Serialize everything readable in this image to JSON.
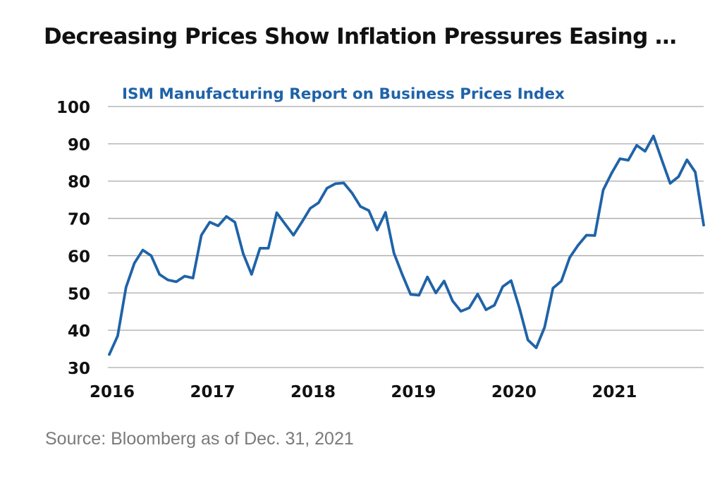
{
  "header": {
    "title": "Decreasing Prices Show Inflation Pressures Easing …"
  },
  "footer": {
    "source": "Source: Bloomberg as of Dec. 31, 2021"
  },
  "chart_data": {
    "type": "line",
    "title": "ISM Manufacturing Report on Business Prices Index",
    "xlabel": "",
    "ylabel": "",
    "ylim": [
      30,
      100
    ],
    "yticks": [
      30,
      40,
      50,
      60,
      70,
      80,
      90,
      100
    ],
    "xlim": [
      "2016-01",
      "2021-12"
    ],
    "xticks": [
      {
        "label": "2016",
        "date": "2016-01"
      },
      {
        "label": "2017",
        "date": "2017-01"
      },
      {
        "label": "2018",
        "date": "2018-01"
      },
      {
        "label": "2019",
        "date": "2019-01"
      },
      {
        "label": "2020",
        "date": "2020-01"
      },
      {
        "label": "2021",
        "date": "2021-01"
      }
    ],
    "grid": true,
    "legend": "none",
    "line_color": "#1f63a8",
    "grid_color": "#a9a9a9",
    "series": [
      {
        "x": [
          "2016-01",
          "2016-02",
          "2016-03",
          "2016-04",
          "2016-05",
          "2016-06",
          "2016-07",
          "2016-08",
          "2016-09",
          "2016-10",
          "2016-11",
          "2016-12",
          "2017-01",
          "2017-02",
          "2017-03",
          "2017-04",
          "2017-05",
          "2017-06",
          "2017-07",
          "2017-08",
          "2017-09",
          "2017-10",
          "2017-11",
          "2017-12",
          "2018-01",
          "2018-02",
          "2018-03",
          "2018-04",
          "2018-05",
          "2018-06",
          "2018-07",
          "2018-08",
          "2018-09",
          "2018-10",
          "2018-11",
          "2018-12",
          "2019-01",
          "2019-02",
          "2019-03",
          "2019-04",
          "2019-05",
          "2019-06",
          "2019-07",
          "2019-08",
          "2019-09",
          "2019-10",
          "2019-11",
          "2019-12",
          "2020-01",
          "2020-02",
          "2020-03",
          "2020-04",
          "2020-05",
          "2020-06",
          "2020-07",
          "2020-08",
          "2020-09",
          "2020-10",
          "2020-11",
          "2020-12",
          "2021-01",
          "2021-02",
          "2021-03",
          "2021-04",
          "2021-05",
          "2021-06",
          "2021-07",
          "2021-08",
          "2021-09",
          "2021-10",
          "2021-11",
          "2021-12"
        ],
        "values": [
          33.5,
          38.5,
          51.5,
          58.0,
          61.5,
          60.0,
          55.0,
          53.5,
          53.0,
          54.5,
          54.0,
          65.5,
          69.0,
          68.0,
          70.5,
          69.0,
          60.5,
          55.0,
          62.0,
          62.0,
          71.5,
          68.5,
          65.5,
          69.0,
          72.7,
          74.2,
          78.1,
          79.3,
          79.5,
          76.8,
          73.2,
          72.1,
          66.9,
          71.6,
          60.7,
          54.9,
          49.6,
          49.4,
          54.3,
          50.0,
          53.2,
          47.9,
          45.1,
          46.0,
          49.7,
          45.5,
          46.7,
          51.7,
          53.3,
          45.9,
          37.4,
          35.3,
          40.8,
          51.3,
          53.2,
          59.5,
          62.8,
          65.5,
          65.4,
          77.6,
          82.1,
          86.0,
          85.6,
          89.6,
          88.0,
          92.1,
          85.7,
          79.4,
          81.2,
          85.7,
          82.4,
          68.2
        ]
      }
    ]
  }
}
